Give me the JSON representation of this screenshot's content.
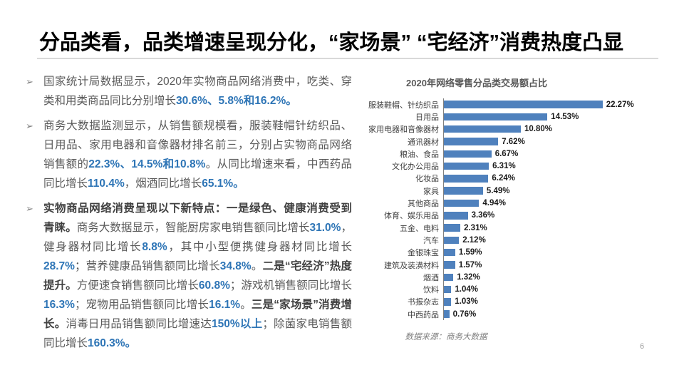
{
  "slide": {
    "title": "分品类看，品类增速呈现分化，“家场景” “宅经济”消费热度凸显",
    "page_number": "6",
    "bullet_marker": "➢",
    "accent_blue": "#2e75b6",
    "body_gray": "#595959"
  },
  "bullets": [
    {
      "segments": [
        {
          "style": "n",
          "text": "国家统计局数据显示，2020年实物商品网络消费中，吃类、穿类和用类商品同比分别增长"
        },
        {
          "style": "b",
          "text": "30.6%、5.8%和16.2%。"
        }
      ]
    },
    {
      "segments": [
        {
          "style": "n",
          "text": "商务大数据监测显示，从销售额规模看，服装鞋帽针纺织品、日用品、家用电器和音像器材排名前三，分别占实物商品网络销售额的"
        },
        {
          "style": "b",
          "text": "22.3%、14.5%和10.8%"
        },
        {
          "style": "n",
          "text": "。从同比增速来看，中西药品同比增长"
        },
        {
          "style": "b",
          "text": "110.4%"
        },
        {
          "style": "n",
          "text": "，烟酒同比增长"
        },
        {
          "style": "b",
          "text": "65.1%。"
        }
      ]
    },
    {
      "segments": [
        {
          "style": "s",
          "text": "实物商品网络消费呈现以下新特点：一是绿色、健康消费受到青睐。"
        },
        {
          "style": "n",
          "text": "商务大数据显示，智能厨房家电销售额同比增长"
        },
        {
          "style": "b",
          "text": "31.0%"
        },
        {
          "style": "n",
          "text": "，健身器材同比增长"
        },
        {
          "style": "b",
          "text": "8.8%"
        },
        {
          "style": "n",
          "text": "，其中小型便携健身器材同比增长"
        },
        {
          "style": "b",
          "text": "28.7%"
        },
        {
          "style": "n",
          "text": "；营养健康品销售额同比增长"
        },
        {
          "style": "b",
          "text": "34.8%"
        },
        {
          "style": "n",
          "text": "。"
        },
        {
          "style": "s",
          "text": "二是“宅经济”热度提升。"
        },
        {
          "style": "n",
          "text": "方便速食销售额同比增长"
        },
        {
          "style": "b",
          "text": "60.8%"
        },
        {
          "style": "n",
          "text": "；游戏机销售额同比增长"
        },
        {
          "style": "b",
          "text": "16.3%"
        },
        {
          "style": "n",
          "text": "；宠物用品销售额同比增长"
        },
        {
          "style": "b",
          "text": "16.1%"
        },
        {
          "style": "n",
          "text": "。"
        },
        {
          "style": "s",
          "text": "三是“家场景”消费增长。"
        },
        {
          "style": "n",
          "text": "消毒日用品销售额同比增速达"
        },
        {
          "style": "b",
          "text": "150%以上"
        },
        {
          "style": "n",
          "text": "；除菌家电销售额同比增长"
        },
        {
          "style": "b",
          "text": "160.3%。"
        }
      ]
    }
  ],
  "chart_data": {
    "type": "bar",
    "orientation": "horizontal",
    "title": "2020年网络零售分品类交易额占比",
    "source": "数据来源：商务大数据",
    "bar_color": "#4f81bd",
    "xlim": [
      0,
      25
    ],
    "grid": false,
    "legend": "none",
    "categories": [
      "服装鞋帽、针纺织品",
      "日用品",
      "家用电器和音像器材",
      "通讯器材",
      "粮油、食品",
      "文化办公用品",
      "化妆品",
      "家具",
      "其他商品",
      "体育、娱乐用品",
      "五金、电料",
      "汽车",
      "金银珠宝",
      "建筑及装潢材料",
      "烟酒",
      "饮料",
      "书报杂志",
      "中西药品"
    ],
    "values": [
      22.27,
      14.53,
      10.8,
      7.62,
      6.67,
      6.31,
      6.24,
      5.49,
      4.94,
      3.36,
      2.31,
      2.12,
      1.59,
      1.57,
      1.32,
      1.04,
      1.03,
      0.76
    ],
    "value_labels": [
      "22.27%",
      "14.53%",
      "10.80%",
      "7.62%",
      "6.67%",
      "6.31%",
      "6.24%",
      "5.49%",
      "4.94%",
      "3.36%",
      "2.31%",
      "2.12%",
      "1.59%",
      "1.57%",
      "1.32%",
      "1.04%",
      "1.03%",
      "0.76%"
    ]
  }
}
